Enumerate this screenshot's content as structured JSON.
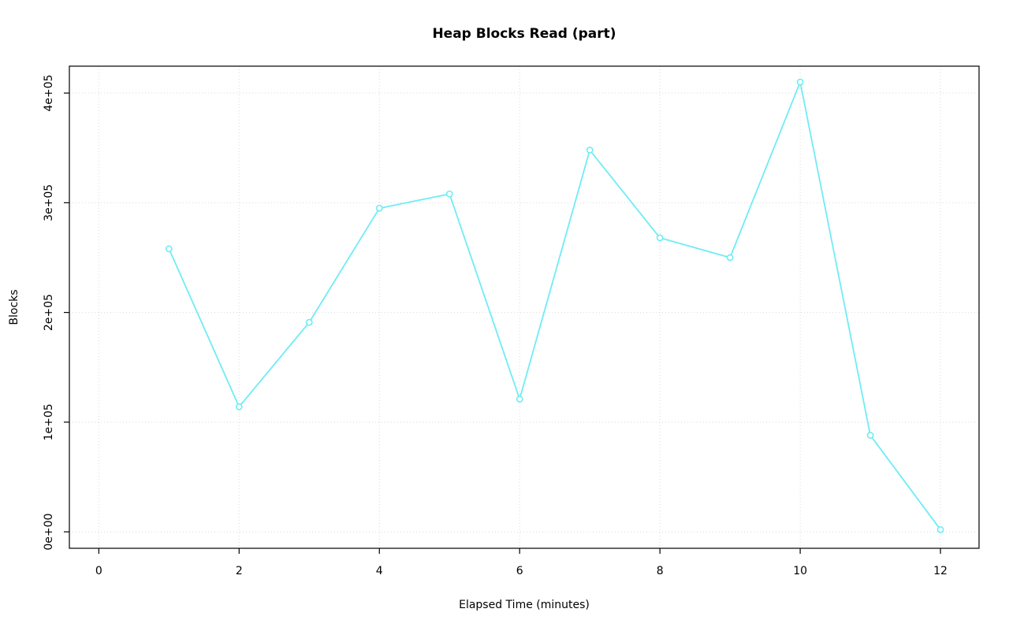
{
  "chart_data": {
    "type": "line",
    "title": "Heap Blocks Read (part)",
    "xlabel": "Elapsed Time (minutes)",
    "ylabel": "Blocks",
    "x": [
      1,
      2,
      3,
      4,
      5,
      6,
      7,
      8,
      9,
      10,
      11,
      12
    ],
    "values": [
      258000,
      114000,
      191000,
      295000,
      308000,
      121000,
      348000,
      268000,
      250000,
      410000,
      88000,
      2000
    ],
    "x_ticks": [
      0,
      2,
      4,
      6,
      8,
      10,
      12
    ],
    "y_ticks": [
      {
        "value": 0,
        "label": "0e+00"
      },
      {
        "value": 100000,
        "label": "1e+05"
      },
      {
        "value": 200000,
        "label": "2e+05"
      },
      {
        "value": 300000,
        "label": "3e+05"
      },
      {
        "value": 400000,
        "label": "4e+05"
      }
    ],
    "xlim": [
      -0.42,
      12.55
    ],
    "ylim": [
      -15000,
      424500
    ],
    "grid": true,
    "grid_style": "dotted",
    "legend": "none",
    "marker": "open-circle",
    "series_color": "#6fecf5",
    "grid_color": "#d9d9d9",
    "axis_color": "#000000",
    "background_color": "#ffffff"
  }
}
